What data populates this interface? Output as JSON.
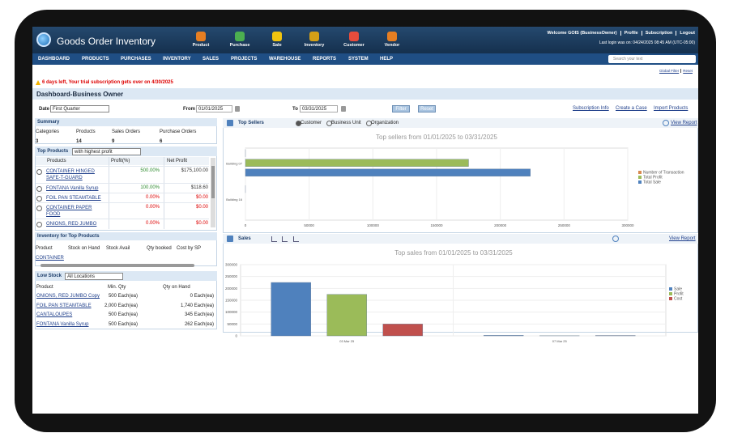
{
  "header": {
    "app_name": "Goods Order Inventory",
    "quick_links": [
      "Product",
      "Purchase",
      "Sale",
      "Inventory",
      "Customer",
      "Vendor"
    ],
    "welcome": "Welcome GOIS (BusinessOwner)",
    "user_links": [
      "Profile",
      "Subscription",
      "Logout"
    ],
    "last_login": "Last login was on: 04/24/2025 08:45 AM (UTC-05:00)"
  },
  "nav": {
    "items": [
      "DASHBOARD",
      "PRODUCTS",
      "PURCHASES",
      "INVENTORY",
      "SALES",
      "PROJECTS",
      "WAREHOUSE",
      "REPORTS",
      "SYSTEM",
      "HELP"
    ],
    "search_placeholder": "Search your text"
  },
  "filter_links": [
    "Global Filter",
    "Reset"
  ],
  "alert": "6 days left, Your trial subscription gets over on 4/30/2025",
  "page_title": "Dashboard-Business Owner",
  "filters": {
    "date_label": "Date",
    "date_value": "First Quarter",
    "from_label": "From",
    "from_value": "01/01/2025",
    "to_label": "To",
    "to_value": "03/31/2025",
    "buttons": [
      "Filter",
      "Reset"
    ],
    "links": [
      "Subscription Info",
      "Create a Case",
      "Import Products"
    ]
  },
  "summary": {
    "title": "Summary",
    "columns": [
      "Categories",
      "Products",
      "Sales Orders",
      "Purchase Orders"
    ],
    "values": [
      3,
      14,
      9,
      6
    ]
  },
  "top_products": {
    "title": "Top Products",
    "filter": "with highest profit",
    "columns": [
      "Products",
      "Profit(%)",
      "Net Profit"
    ],
    "rows": [
      [
        "CONTAINER HINGED SAFE-T-GUARD",
        "500.00%",
        "$175,100.00"
      ],
      [
        "FONTANA Vanilla Syrup",
        "100.00%",
        "$118.60"
      ],
      [
        "FOIL PAN STEAMTABLE",
        "0.00%",
        "$0.00"
      ],
      [
        "CONTAINER PAPER FOOD",
        "0.00%",
        "$0.00"
      ],
      [
        "ONIONS, RED JUMBO",
        "0.00%",
        "$0.00"
      ]
    ]
  },
  "inventory": {
    "title": "Inventory for Top Products",
    "columns": [
      "Product",
      "Stock on Hand",
      "Stock Avail",
      "Qty booked",
      "Cost by SP"
    ],
    "rows": [
      [
        "CONTAINER"
      ]
    ]
  },
  "low_stock": {
    "title": "Low Stock",
    "filter": "All Locations",
    "columns": [
      "Product",
      "Min. Qty",
      "Qty on Hand"
    ],
    "rows": [
      [
        "ONIONS, RED JUMBO Copy",
        "500 Each(ea)",
        "0 Each(ea)"
      ],
      [
        "FOIL PAN STEAMTABLE",
        "2,000 Each(ea)",
        "1,740 Each(ea)"
      ],
      [
        "CANTALOUPES",
        "500 Each(ea)",
        "345 Each(ea)"
      ],
      [
        "FONTANA Vanilla Syrup",
        "500 Each(ea)",
        "262 Each(ea)"
      ]
    ]
  },
  "top_sellers": {
    "title": "Top Sellers",
    "options": [
      "Customer",
      "Business Unit",
      "Organization"
    ],
    "link": "View Report"
  },
  "sales": {
    "title": "Sales",
    "link": "View Report"
  },
  "chart_data": [
    {
      "type": "barh",
      "title": "Top sellers from 01/01/2025 to 03/31/2025",
      "categories": [
        "Building 07",
        "Building 16"
      ],
      "series": [
        {
          "name": "Number of Transaction",
          "color": "#d8894f",
          "values": [
            9,
            1
          ]
        },
        {
          "name": "Total Profit",
          "color": "#9bbb59",
          "values": [
            175100,
            0
          ]
        },
        {
          "name": "Total Sale",
          "color": "#4f81bd",
          "values": [
            223600,
            0
          ]
        }
      ],
      "xlim": [
        0,
        300000
      ],
      "xticks": [
        0,
        50000,
        100000,
        150000,
        200000,
        250000,
        300000
      ],
      "grid": true
    },
    {
      "type": "bar",
      "title": "Top sales from 01/01/2025 to 03/31/2025",
      "categories": [
        "03 Mar 25",
        "07 Mar 25"
      ],
      "series": [
        {
          "name": "Sale",
          "color": "#4f81bd",
          "values": [
            225000,
            2000
          ]
        },
        {
          "name": "Profit",
          "color": "#9bbb59",
          "values": [
            175000,
            500
          ]
        },
        {
          "name": "Cost",
          "color": "#c0504d",
          "values": [
            50000,
            1500
          ]
        }
      ],
      "ylim": [
        0,
        300000
      ],
      "yticks": [
        0,
        50000,
        100000,
        150000,
        200000,
        250000,
        300000
      ],
      "grid": true
    }
  ]
}
